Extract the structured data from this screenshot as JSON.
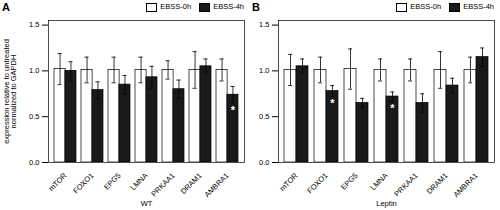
{
  "chart_data": [
    {
      "type": "bar",
      "title": "A",
      "xlabel": "WT",
      "ylabel": "expression relative to untreated\nnormalized to GAPDH",
      "categories": [
        "mTOR",
        "FOXO1",
        "EPG5",
        "LMNA",
        "PRKAA1",
        "DRAM1",
        "AMBRA1"
      ],
      "series": [
        {
          "name": "EBSS-0h",
          "color": "#ffffff",
          "values": [
            1.02,
            1.01,
            1.01,
            1.01,
            1.01,
            1.01,
            1.01
          ],
          "errors": [
            0.17,
            0.14,
            0.14,
            0.14,
            0.1,
            0.2,
            0.12
          ]
        },
        {
          "name": "EBSS-4h",
          "color": "#1a1a1a",
          "values": [
            1.0,
            0.79,
            0.85,
            0.93,
            0.8,
            1.05,
            0.74
          ],
          "errors": [
            0.1,
            0.09,
            0.1,
            0.12,
            0.1,
            0.08,
            0.09
          ]
        }
      ],
      "annotations": [
        {
          "text": "*",
          "category": "AMBRA1",
          "series": "EBSS-4h"
        }
      ],
      "ylim": [
        0,
        1.55
      ],
      "yticks": [
        {
          "value": 0,
          "label": "0.0"
        },
        0.5,
        {
          "value": 1,
          "label": "1.0"
        },
        1.5
      ],
      "legend": "upper right"
    },
    {
      "type": "bar",
      "title": "B",
      "xlabel": "Leptin",
      "categories": [
        "mTOR",
        "FOXO1",
        "EPG5",
        "LMNA",
        "PRKAA1",
        "DRAM1",
        "AMBRA1"
      ],
      "series": [
        {
          "name": "EBSS-0h",
          "color": "#ffffff",
          "values": [
            1.01,
            1.01,
            1.02,
            1.01,
            1.01,
            1.01,
            1.01
          ],
          "errors": [
            0.17,
            0.14,
            0.22,
            0.12,
            0.12,
            0.2,
            0.14
          ]
        },
        {
          "name": "EBSS-4h",
          "color": "#1a1a1a",
          "values": [
            1.05,
            0.78,
            0.65,
            0.72,
            0.65,
            0.84,
            1.15
          ],
          "errors": [
            0.08,
            0.06,
            0.05,
            0.05,
            0.1,
            0.08,
            0.1
          ]
        }
      ],
      "annotations": [
        {
          "text": "*",
          "category": "FOXO1",
          "series": "EBSS-4h"
        },
        {
          "text": "*",
          "category": "LMNA",
          "series": "EBSS-4h"
        }
      ],
      "ylim": [
        0,
        1.55
      ],
      "yticks": [
        {
          "value": 0,
          "label": "0.0"
        },
        0.5,
        {
          "value": 1,
          "label": "1.0"
        },
        1.5
      ],
      "legend": "upper right"
    }
  ]
}
